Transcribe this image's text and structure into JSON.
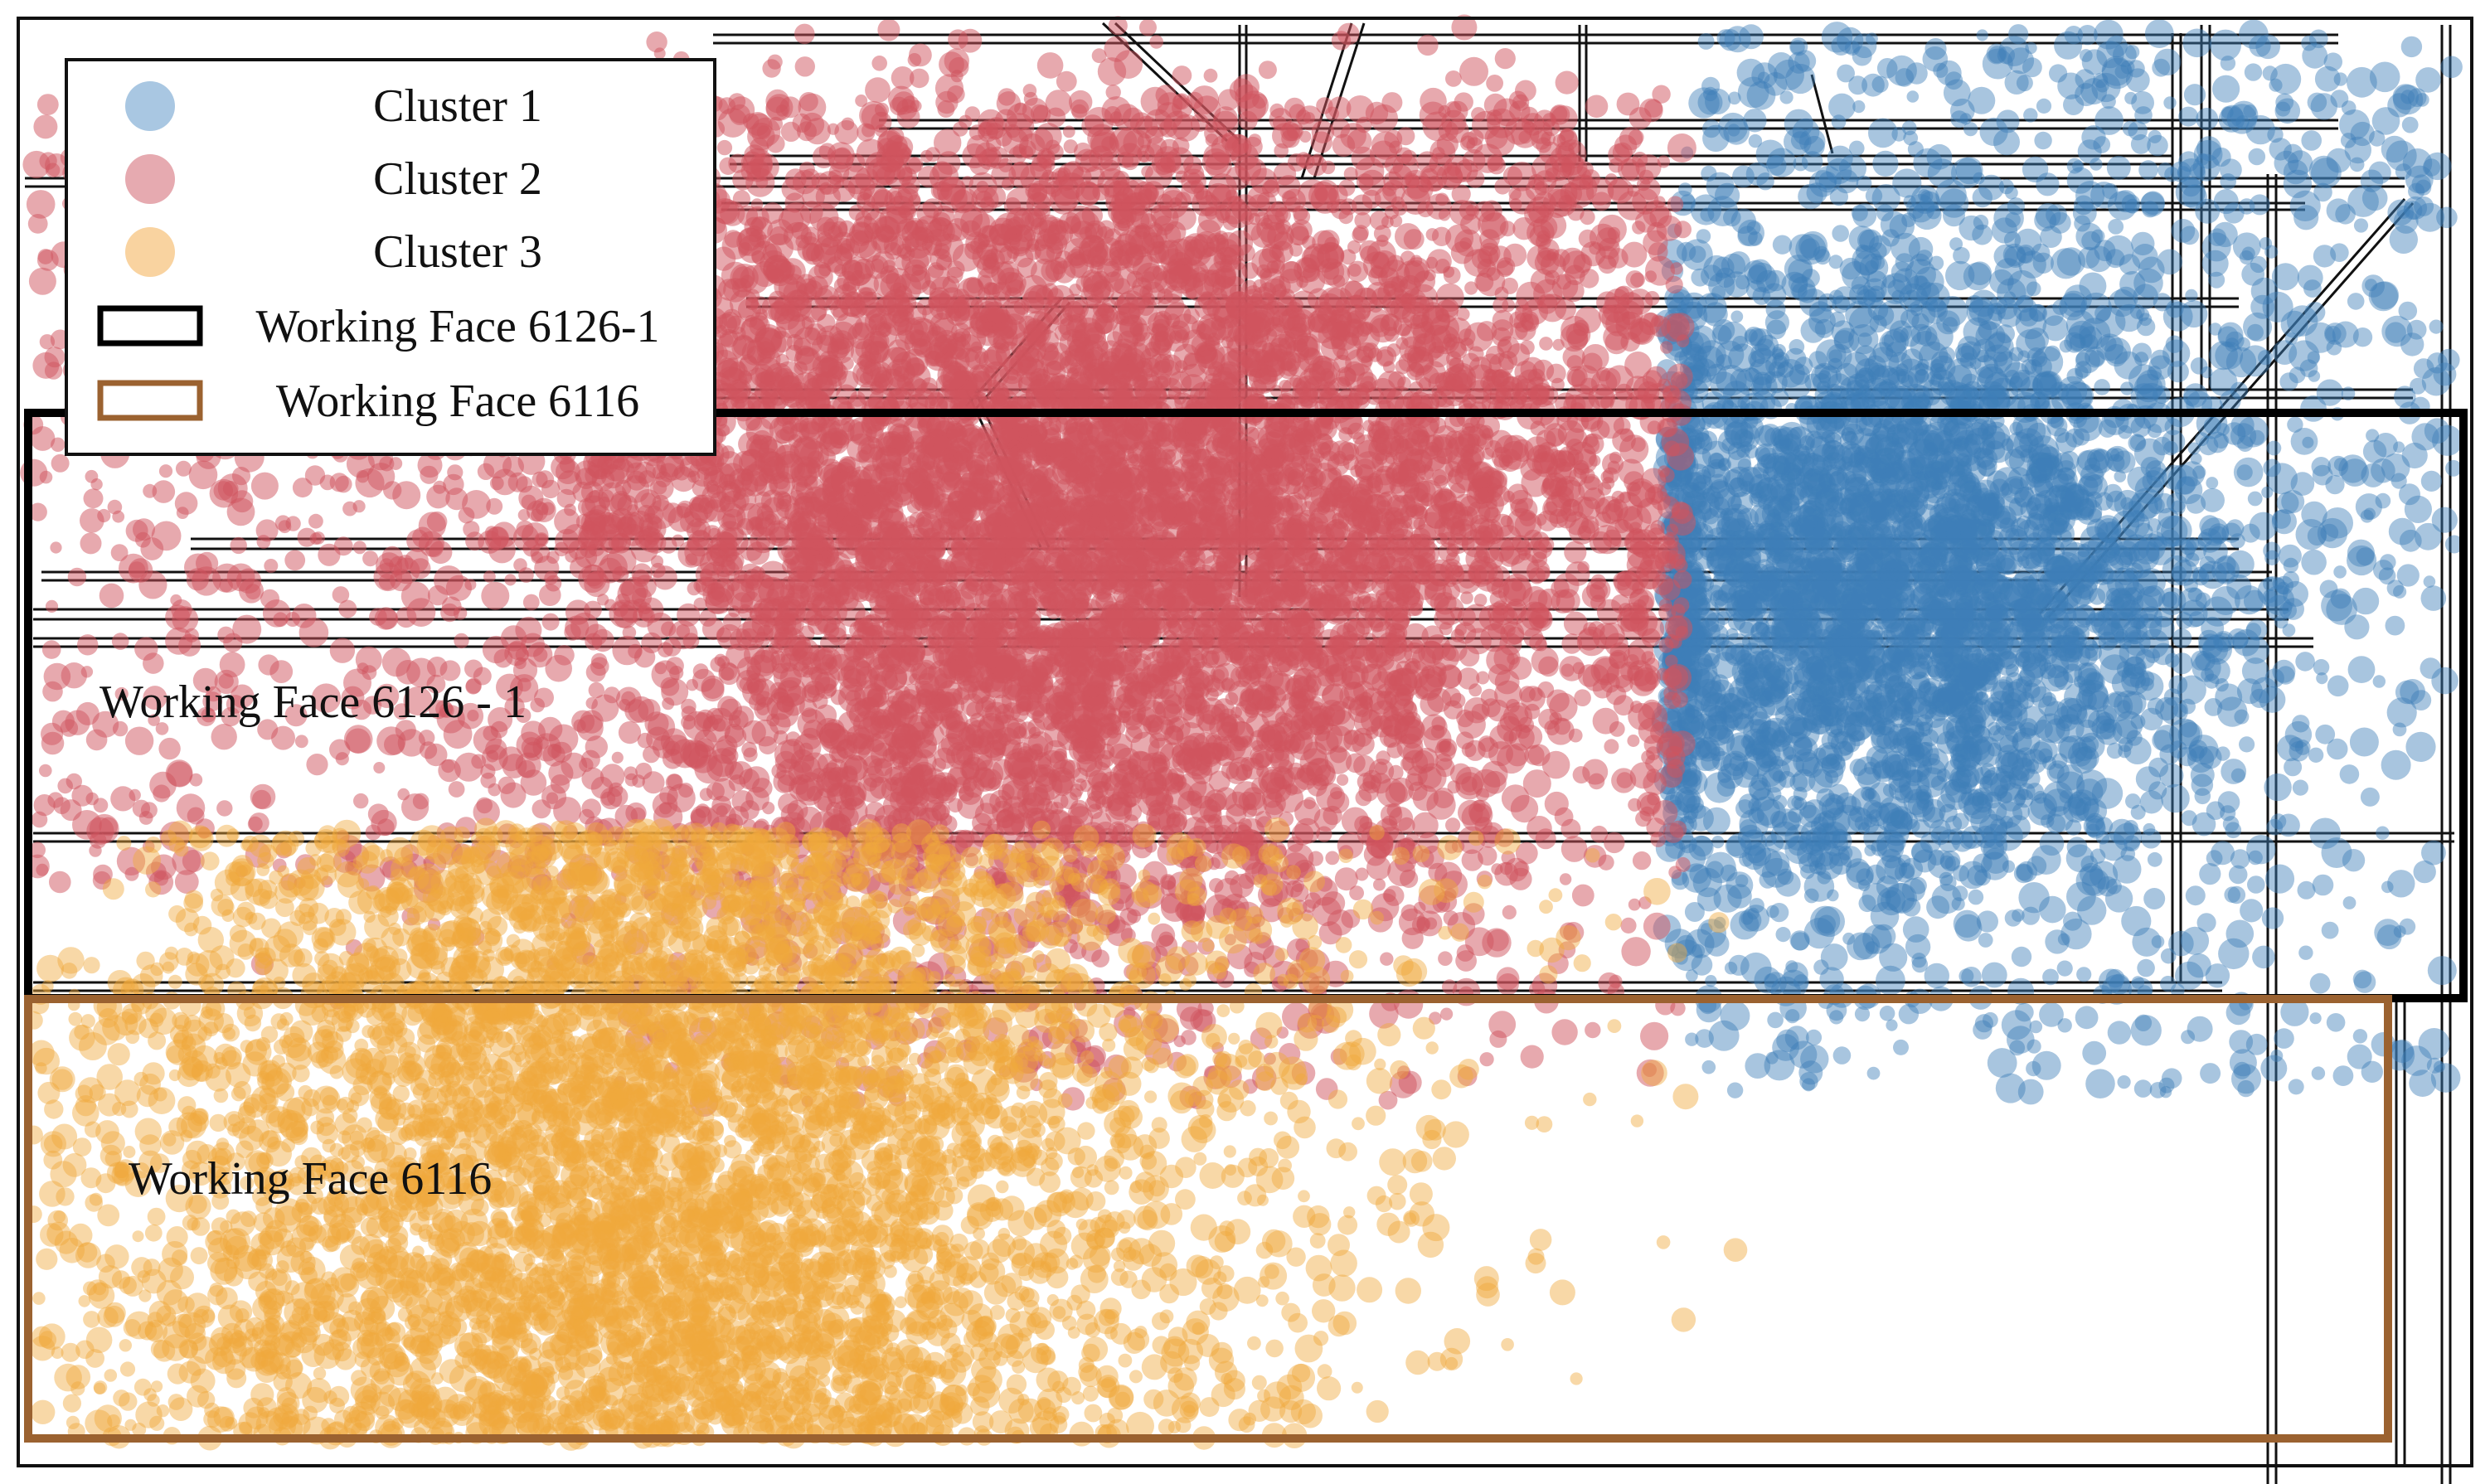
{
  "chart_data": {
    "type": "scatter",
    "title": "",
    "xlabel": "",
    "ylabel": "",
    "grid": false,
    "legend_position": "top-left",
    "series": [
      {
        "name": "Cluster 1",
        "color": "#3f7fb8",
        "approx_points": 4200,
        "description_region": "east end of Working Face 6126-1, extending north"
      },
      {
        "name": "Cluster 2",
        "color": "#d0545e",
        "approx_points": 9000,
        "description_region": "central Working Face 6126-1 and roadways to the north"
      },
      {
        "name": "Cluster 3",
        "color": "#f0a83c",
        "approx_points": 5500,
        "description_region": "western half of Working Face 6116"
      }
    ],
    "legend": {
      "items": [
        {
          "label": "Cluster 1",
          "kind": "marker",
          "color": "#a9c7e2"
        },
        {
          "label": "Cluster 2",
          "kind": "marker",
          "color": "#e6aab0"
        },
        {
          "label": "Cluster 3",
          "kind": "marker",
          "color": "#f9d3a0"
        },
        {
          "label": "Working Face 6126-1",
          "kind": "rect-outline",
          "color": "#000000"
        },
        {
          "label": "Working Face 6116",
          "kind": "rect-outline",
          "color": "#9b6230"
        }
      ]
    },
    "annotations": [
      {
        "id": "wf6126",
        "text": "Working Face 6126 - 1"
      },
      {
        "id": "wf6116",
        "text": "Working Face 6116"
      }
    ],
    "outline_colors": {
      "wf6126": "#000000",
      "wf6116": "#9b6230"
    }
  }
}
